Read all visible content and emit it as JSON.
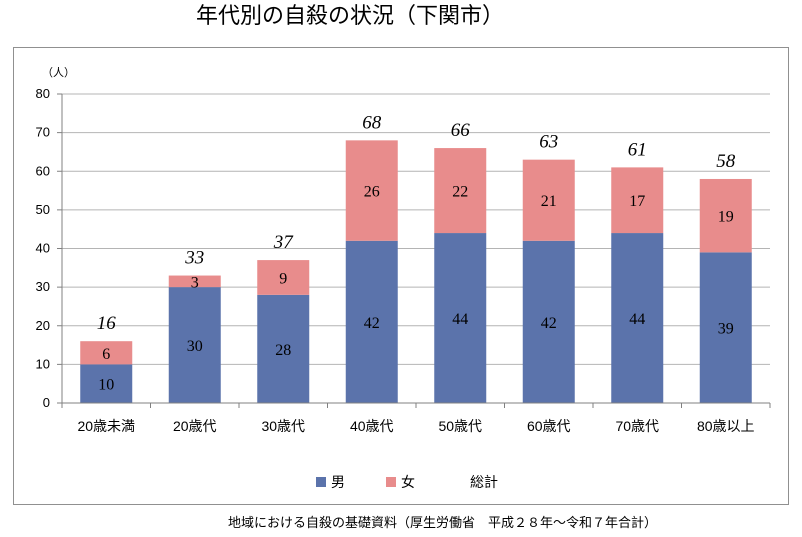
{
  "title": "年代別の自殺の状況（下関市）",
  "source": "地域における自殺の基礎資料（厚生労働省　平成２８年〜令和７年合計）",
  "colors": {
    "male": "#5b73ab",
    "female": "#e88c8c",
    "grid": "#b4b4b4",
    "axis": "#808080"
  },
  "chart_data": {
    "type": "bar",
    "stacked": true,
    "unit_label": "（人）",
    "categories": [
      "20歳未満",
      "20歳代",
      "30歳代",
      "40歳代",
      "50歳代",
      "60歳代",
      "70歳代",
      "80歳以上"
    ],
    "series": [
      {
        "name": "男",
        "values": [
          10,
          30,
          28,
          42,
          44,
          42,
          44,
          39
        ]
      },
      {
        "name": "女",
        "values": [
          6,
          3,
          9,
          26,
          22,
          21,
          17,
          19
        ]
      }
    ],
    "totals": {
      "name": "総計",
      "values": [
        16,
        33,
        37,
        68,
        66,
        63,
        61,
        58
      ]
    },
    "ylim": [
      0,
      80
    ],
    "yticks": [
      0,
      10,
      20,
      30,
      40,
      50,
      60,
      70,
      80
    ],
    "grid": true,
    "legend": "bottom"
  }
}
